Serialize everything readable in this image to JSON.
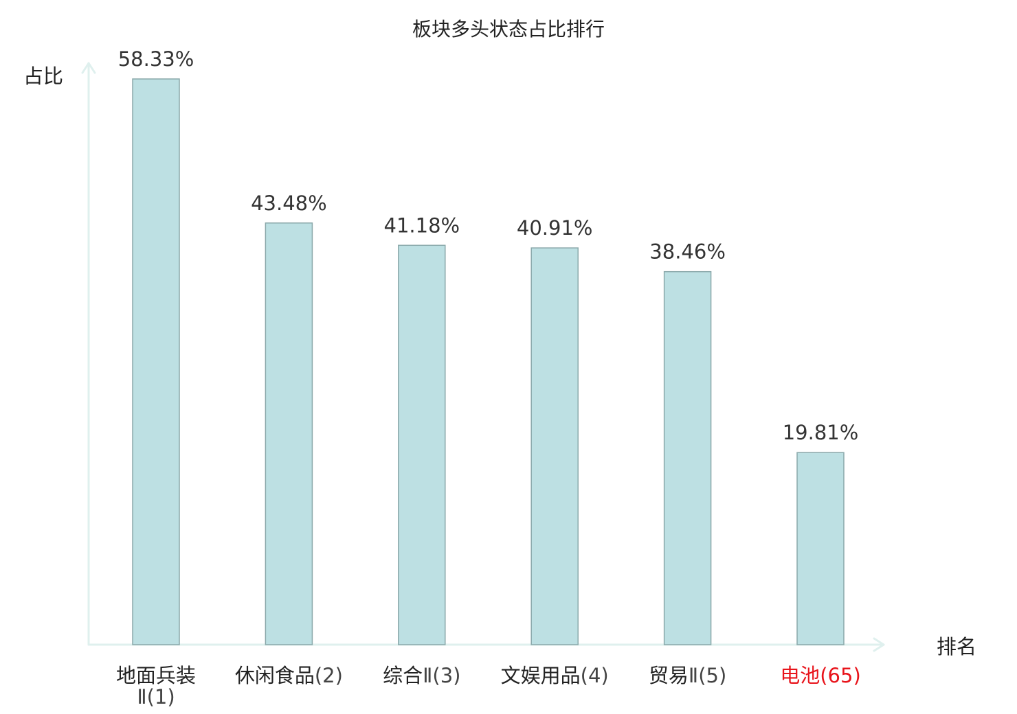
{
  "chart_data": {
    "type": "bar",
    "title": "板块多头状态占比排行",
    "ylabel": "占比",
    "xlabel": "排名",
    "ylim": [
      0,
      60
    ],
    "grid": false,
    "legend": "none",
    "categories": [
      {
        "name": "地面兵装",
        "rank": "Ⅱ(1)",
        "highlight": false
      },
      {
        "name": "休闲食品",
        "rank": "(2)",
        "highlight": false
      },
      {
        "name": "综合",
        "rank": "Ⅱ(3)",
        "highlight": false
      },
      {
        "name": "文娱用品",
        "rank": "(4)",
        "highlight": false
      },
      {
        "name": "贸易",
        "rank": "Ⅱ(5)",
        "highlight": false
      },
      {
        "name": "电池",
        "rank": "(65)",
        "highlight": true
      }
    ],
    "values": [
      58.33,
      43.48,
      41.18,
      40.91,
      38.46,
      19.81
    ],
    "value_labels": [
      "58.33%",
      "43.48%",
      "41.18%",
      "40.91%",
      "38.46%",
      "19.81%"
    ],
    "colors": {
      "bar_fill": "#bde0e3",
      "bar_stroke": "#8aa8aa",
      "axis": "#dff0ee",
      "highlight_label": "#e8141b"
    }
  }
}
